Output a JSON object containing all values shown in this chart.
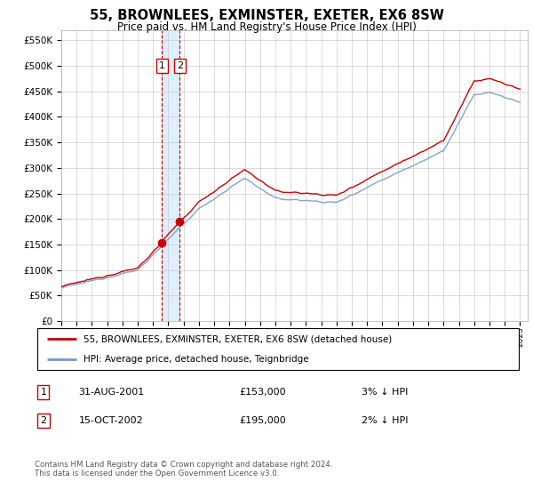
{
  "title": "55, BROWNLEES, EXMINSTER, EXETER, EX6 8SW",
  "subtitle": "Price paid vs. HM Land Registry's House Price Index (HPI)",
  "legend_line1": "55, BROWNLEES, EXMINSTER, EXETER, EX6 8SW (detached house)",
  "legend_line2": "HPI: Average price, detached house, Teignbridge",
  "sale1_date": "31-AUG-2001",
  "sale1_price_str": "£153,000",
  "sale1_price_val": 153000,
  "sale1_hpi": "3% ↓ HPI",
  "sale2_date": "15-OCT-2002",
  "sale2_price_str": "£195,000",
  "sale2_price_val": 195000,
  "sale2_hpi": "2% ↓ HPI",
  "footer": "Contains HM Land Registry data © Crown copyright and database right 2024.\nThis data is licensed under the Open Government Licence v3.0.",
  "ylim": [
    0,
    570000
  ],
  "yticks": [
    0,
    50000,
    100000,
    150000,
    200000,
    250000,
    300000,
    350000,
    400000,
    450000,
    500000,
    550000
  ],
  "red_color": "#cc0000",
  "blue_color": "#7799cc",
  "highlight_color": "#ddeeff",
  "grid_color": "#cccccc",
  "bg_color": "#ffffff"
}
